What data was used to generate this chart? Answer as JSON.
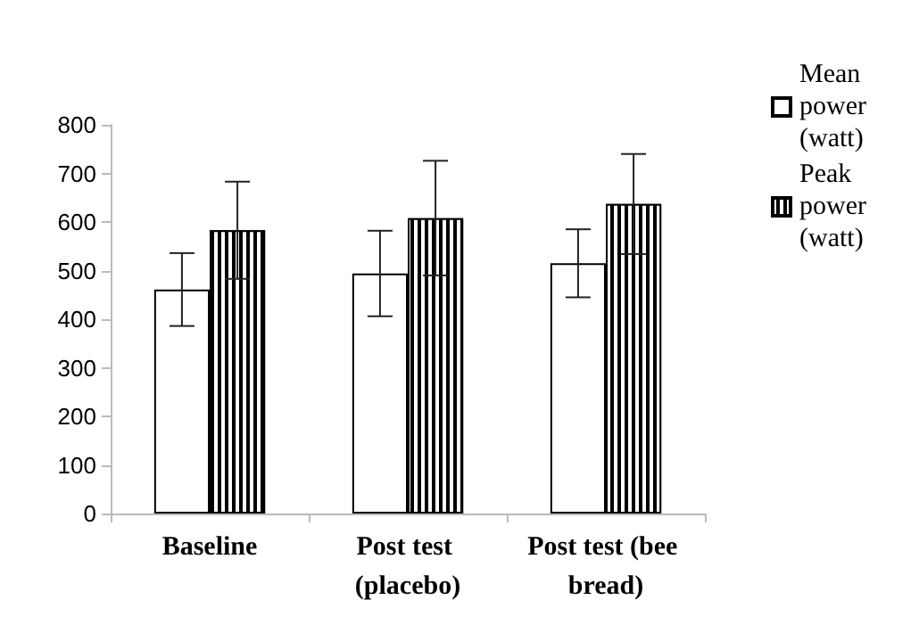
{
  "chart_data": {
    "type": "bar",
    "categories": [
      "Baseline",
      "Post test (placebo)",
      "Post test (bee bread)"
    ],
    "series": [
      {
        "name": "Mean power (watt)",
        "color": "#ffffff",
        "values": [
          461,
          494,
          515
        ],
        "errors": [
          75,
          88,
          70
        ]
      },
      {
        "name": "Peak power (watt)",
        "color": "#000000",
        "values": [
          583,
          608,
          637
        ],
        "errors": [
          100,
          118,
          103
        ]
      }
    ],
    "ylim": [
      0,
      800
    ],
    "yticks": [
      0,
      100,
      200,
      300,
      400,
      500,
      600,
      700,
      800
    ],
    "grid": false,
    "legend": "top right"
  }
}
